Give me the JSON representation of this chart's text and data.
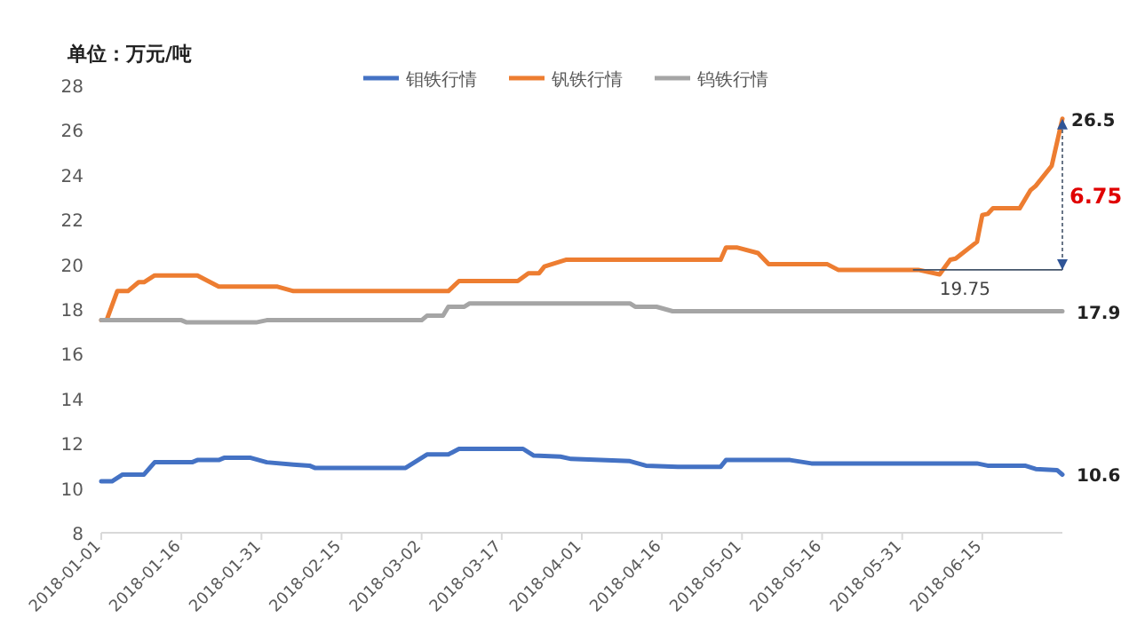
{
  "chart_data": {
    "type": "line",
    "ylabel": "单位：万元/吨",
    "legend": "top",
    "xlim": [
      "2018-01-01",
      "2018-06-30"
    ],
    "xticks": [
      "2018-01-01",
      "2018-01-16",
      "2018-01-31",
      "2018-02-15",
      "2018-03-02",
      "2018-03-17",
      "2018-04-01",
      "2018-04-16",
      "2018-05-01",
      "2018-05-16",
      "2018-05-31",
      "2018-06-15"
    ],
    "ylim": [
      8,
      28
    ],
    "yticks": [
      8,
      10,
      12,
      14,
      16,
      18,
      20,
      22,
      24,
      26,
      28
    ],
    "series": [
      {
        "name": "钼铁行情",
        "color": "#4472c4",
        "x": [
          "2018-01-01",
          "2018-01-03",
          "2018-01-05",
          "2018-01-09",
          "2018-01-11",
          "2018-01-18",
          "2018-01-19",
          "2018-01-23",
          "2018-01-24",
          "2018-01-29",
          "2018-02-01",
          "2018-02-06",
          "2018-02-09",
          "2018-02-10",
          "2018-02-27",
          "2018-03-03",
          "2018-03-07",
          "2018-03-09",
          "2018-03-21",
          "2018-03-23",
          "2018-03-28",
          "2018-03-30",
          "2018-04-10",
          "2018-04-13",
          "2018-04-19",
          "2018-04-27",
          "2018-04-28",
          "2018-05-10",
          "2018-05-14",
          "2018-06-14",
          "2018-06-16",
          "2018-06-23",
          "2018-06-25",
          "2018-06-29",
          "2018-06-30"
        ],
        "values": [
          10.3,
          10.3,
          10.6,
          10.6,
          11.15,
          11.15,
          11.25,
          11.25,
          11.35,
          11.35,
          11.15,
          11.05,
          11.0,
          10.9,
          10.9,
          11.5,
          11.5,
          11.75,
          11.75,
          11.45,
          11.4,
          11.3,
          11.2,
          11.0,
          10.95,
          10.95,
          11.25,
          11.25,
          11.1,
          11.1,
          11.0,
          11.0,
          10.85,
          10.8,
          10.6
        ]
      },
      {
        "name": "钒铁行情",
        "color": "#ed7d31",
        "x": [
          "2018-01-01",
          "2018-01-02",
          "2018-01-04",
          "2018-01-06",
          "2018-01-08",
          "2018-01-09",
          "2018-01-11",
          "2018-01-19",
          "2018-01-23",
          "2018-02-03",
          "2018-02-06",
          "2018-03-07",
          "2018-03-09",
          "2018-03-20",
          "2018-03-22",
          "2018-03-24",
          "2018-03-25",
          "2018-03-29",
          "2018-04-27",
          "2018-04-28",
          "2018-04-30",
          "2018-05-04",
          "2018-05-06",
          "2018-05-17",
          "2018-05-19",
          "2018-06-03",
          "2018-06-07",
          "2018-06-09",
          "2018-06-10",
          "2018-06-14",
          "2018-06-15",
          "2018-06-16",
          "2018-06-17",
          "2018-06-22",
          "2018-06-24",
          "2018-06-25",
          "2018-06-28",
          "2018-06-30"
        ],
        "values": [
          17.5,
          17.5,
          18.8,
          18.8,
          19.2,
          19.2,
          19.5,
          19.5,
          19.0,
          19.0,
          18.8,
          18.8,
          19.25,
          19.25,
          19.6,
          19.6,
          19.9,
          20.2,
          20.2,
          20.75,
          20.75,
          20.5,
          20.0,
          20.0,
          19.75,
          19.75,
          19.55,
          20.2,
          20.25,
          21.0,
          22.2,
          22.25,
          22.5,
          22.5,
          23.3,
          23.5,
          24.4,
          26.5
        ]
      },
      {
        "name": "钨铁行情",
        "color": "#a5a5a5",
        "x": [
          "2018-01-01",
          "2018-01-16",
          "2018-01-17",
          "2018-01-30",
          "2018-02-01",
          "2018-03-02",
          "2018-03-03",
          "2018-03-06",
          "2018-03-07",
          "2018-03-10",
          "2018-03-11",
          "2018-04-10",
          "2018-04-11",
          "2018-04-15",
          "2018-04-18",
          "2018-06-30"
        ],
        "values": [
          17.5,
          17.5,
          17.4,
          17.4,
          17.5,
          17.5,
          17.7,
          17.7,
          18.1,
          18.1,
          18.25,
          18.25,
          18.1,
          18.1,
          17.9,
          17.9
        ]
      }
    ],
    "annotations": [
      {
        "text": "26.5",
        "x": "2018-06-30",
        "y": 26.5
      },
      {
        "text": "17.9",
        "x": "2018-06-30",
        "y": 17.9
      },
      {
        "text": "10.6",
        "x": "2018-06-30",
        "y": 10.6
      },
      {
        "text": "19.75",
        "x": "2018-06-07",
        "y": 19.75
      },
      "6.75"
    ]
  }
}
